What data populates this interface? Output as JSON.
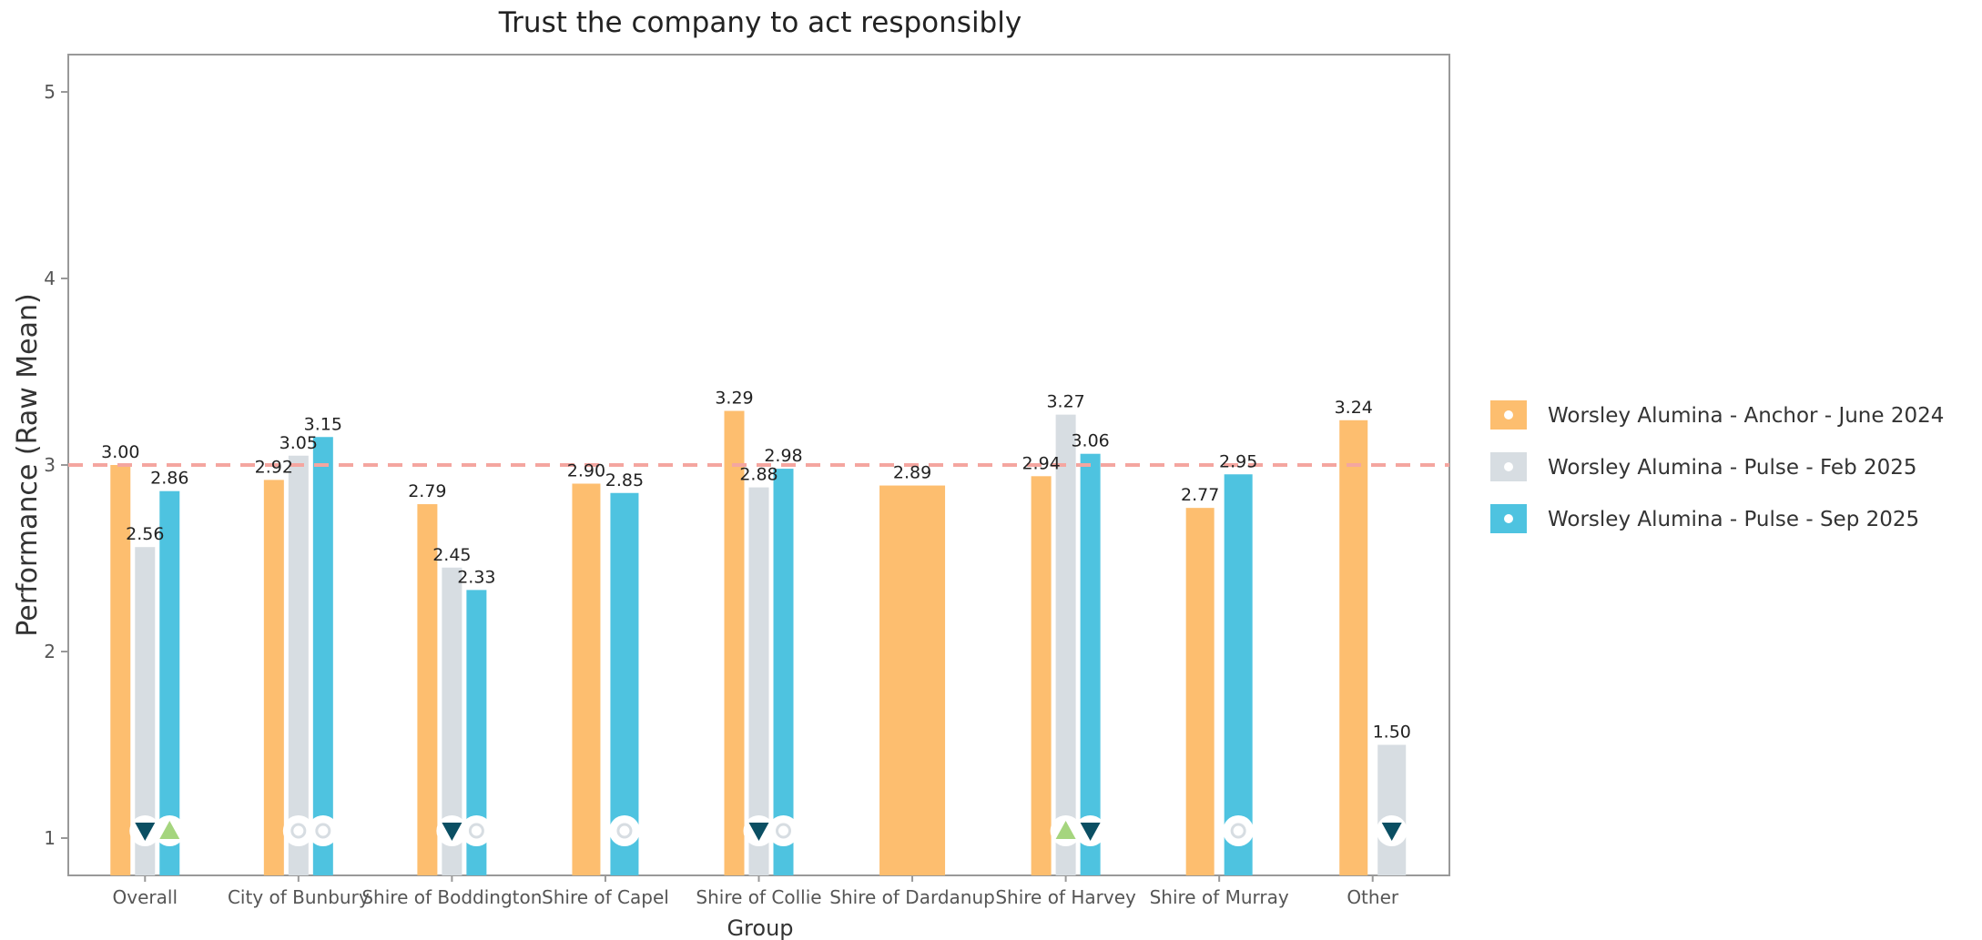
{
  "chart_data": {
    "type": "bar",
    "title": "Trust the company to act responsibly",
    "xlabel": "Group",
    "ylabel": "Performance (Raw Mean)",
    "ylim": [
      0.8,
      5.2
    ],
    "yticks": [
      1,
      2,
      3,
      4,
      5
    ],
    "reference_line": 3,
    "grid": false,
    "legend_position": "right",
    "categories": [
      "Overall",
      "City of Bunbury",
      "Shire of Boddington",
      "Shire of Capel",
      "Shire of Collie",
      "Shire of Dardanup",
      "Shire of Harvey",
      "Shire of Murray",
      "Other"
    ],
    "series": [
      {
        "name": "Worsley Alumina - Anchor - June 2024",
        "color": "#FDBE6F",
        "values": [
          3.0,
          2.92,
          2.79,
          2.9,
          3.29,
          2.89,
          2.94,
          2.77,
          3.24
        ],
        "labels": [
          "3.00",
          "2.92",
          "2.79",
          "2.90",
          "3.29",
          "2.89",
          "2.94",
          "2.77",
          "3.24"
        ]
      },
      {
        "name": "Worsley Alumina - Pulse - Feb 2025",
        "color": "#D7DDE2",
        "values": [
          2.56,
          3.05,
          2.45,
          null,
          2.88,
          null,
          3.27,
          null,
          1.5
        ],
        "labels": [
          "2.56",
          "3.05",
          "2.45",
          "",
          "2.88",
          "",
          "3.27",
          "",
          "1.50"
        ]
      },
      {
        "name": "Worsley Alumina - Pulse - Sep 2025",
        "color": "#4EC3E0",
        "values": [
          2.86,
          3.15,
          2.33,
          2.85,
          2.98,
          null,
          3.06,
          2.95,
          null
        ],
        "labels": [
          "2.86",
          "3.15",
          "2.33",
          "2.85",
          "2.98",
          "",
          "3.06",
          "2.95",
          ""
        ]
      }
    ],
    "significance_markers": [
      {
        "category": "Overall",
        "series": "Worsley Alumina - Pulse - Feb 2025",
        "symbol": "down"
      },
      {
        "category": "Overall",
        "series": "Worsley Alumina - Pulse - Sep 2025",
        "symbol": "up"
      },
      {
        "category": "City of Bunbury",
        "series": "Worsley Alumina - Pulse - Feb 2025",
        "symbol": "none"
      },
      {
        "category": "City of Bunbury",
        "series": "Worsley Alumina - Pulse - Sep 2025",
        "symbol": "none"
      },
      {
        "category": "Shire of Boddington",
        "series": "Worsley Alumina - Pulse - Feb 2025",
        "symbol": "down"
      },
      {
        "category": "Shire of Boddington",
        "series": "Worsley Alumina - Pulse - Sep 2025",
        "symbol": "none"
      },
      {
        "category": "Shire of Capel",
        "series": "Worsley Alumina - Pulse - Sep 2025",
        "symbol": "none"
      },
      {
        "category": "Shire of Collie",
        "series": "Worsley Alumina - Pulse - Feb 2025",
        "symbol": "down"
      },
      {
        "category": "Shire of Collie",
        "series": "Worsley Alumina - Pulse - Sep 2025",
        "symbol": "none"
      },
      {
        "category": "Shire of Harvey",
        "series": "Worsley Alumina - Pulse - Feb 2025",
        "symbol": "up"
      },
      {
        "category": "Shire of Harvey",
        "series": "Worsley Alumina - Pulse - Sep 2025",
        "symbol": "down"
      },
      {
        "category": "Shire of Murray",
        "series": "Worsley Alumina - Pulse - Sep 2025",
        "symbol": "none"
      },
      {
        "category": "Other",
        "series": "Worsley Alumina - Pulse - Feb 2025",
        "symbol": "down"
      }
    ],
    "colors": {
      "reference_line": "#F4A6A0",
      "up_marker": "#A5D57E",
      "down_marker": "#0B4F63",
      "none_marker": "#D7DDE2",
      "panel_border": "#999999"
    }
  }
}
